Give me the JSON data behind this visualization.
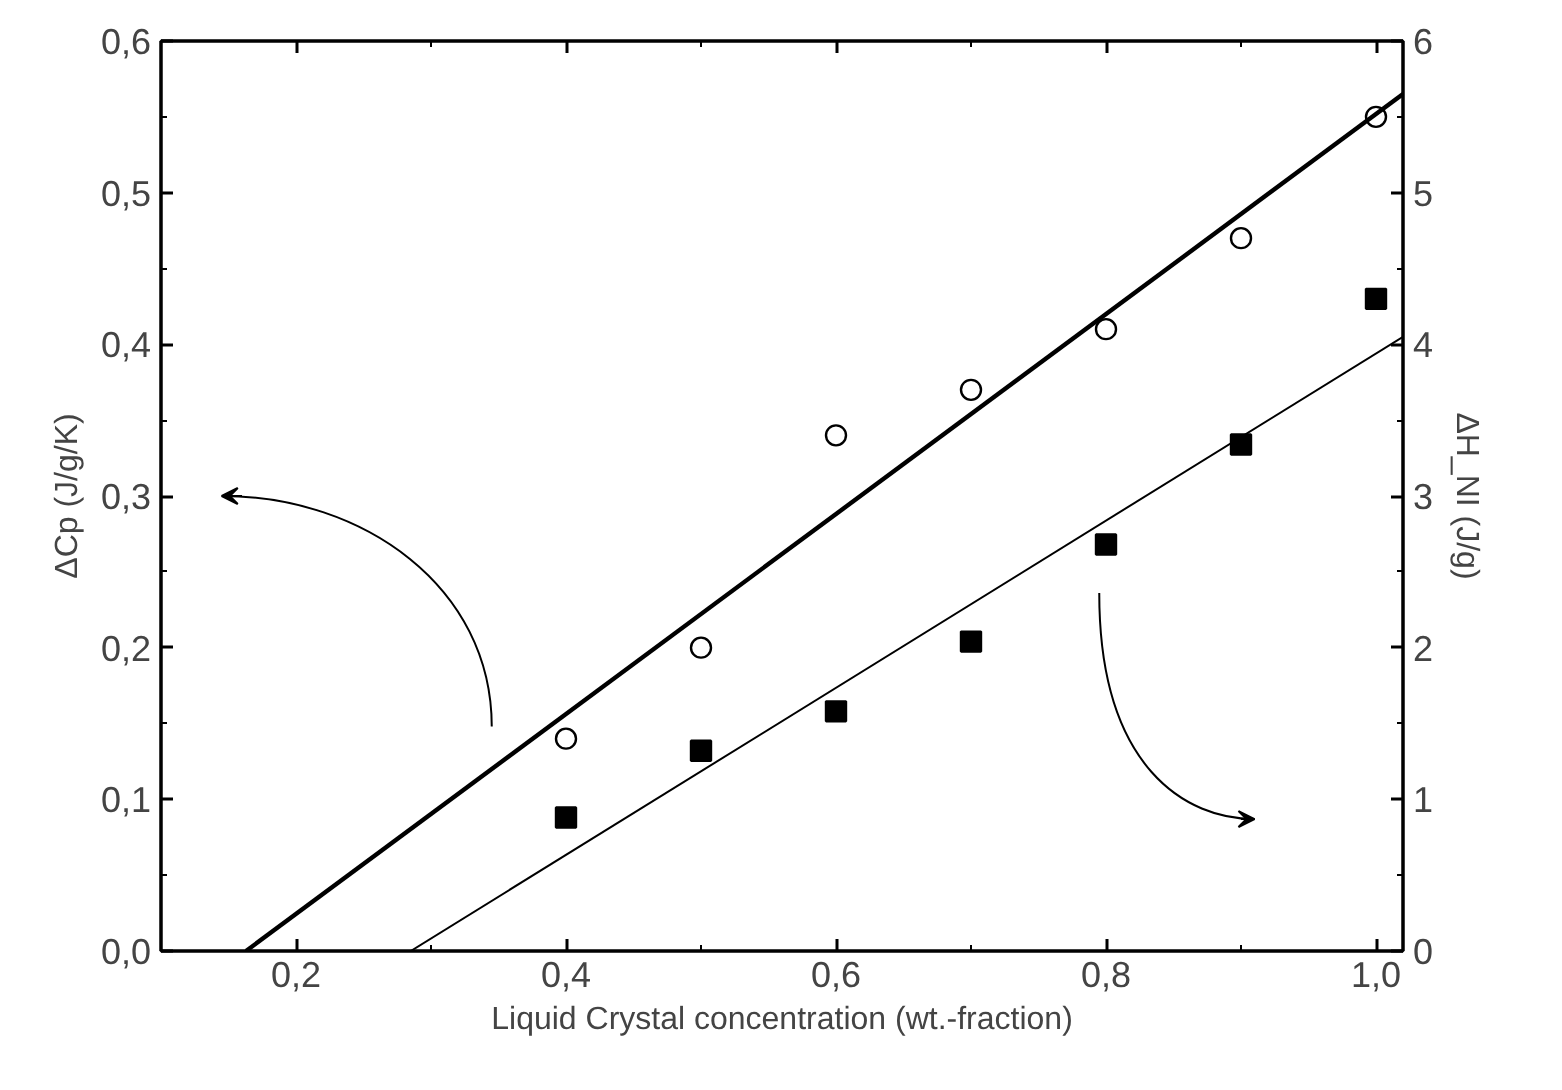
{
  "chart_data": {
    "type": "scatter",
    "xlabel": "Liquid Crystal concentration (wt.-fraction)",
    "ylabel": "ΔCp (J/g/K)",
    "y2label": "ΔH_NI (J/g)",
    "x": [
      0.4,
      0.5,
      0.6,
      0.7,
      0.8,
      0.9,
      1.0
    ],
    "series": [
      {
        "marker": "circle",
        "color": "#000000",
        "values": [
          0.14,
          0.2,
          0.34,
          0.37,
          0.41,
          0.47,
          0.55
        ]
      },
      {
        "marker": "square",
        "color": "#000000",
        "axis": "y2",
        "values": [
          0.88,
          1.32,
          1.58,
          2.04,
          2.68,
          3.34,
          4.3
        ]
      },
      {
        "type": "line",
        "color": "#000000",
        "x": [
          0.163,
          1.02
        ],
        "values": [
          0,
          0.565
        ]
      },
      {
        "type": "line",
        "color": "#000000",
        "axis": "y2",
        "x": [
          0.285,
          1.02
        ],
        "values": [
          0,
          4.05
        ]
      }
    ],
    "xlim": [
      0.1,
      1.02
    ],
    "xticks": [
      {
        "value": 0.2,
        "label": "0,2"
      },
      {
        "value": 0.4,
        "label": "0,4"
      },
      {
        "value": 0.6,
        "label": "0,6"
      },
      {
        "value": 0.8,
        "label": "0,8"
      },
      {
        "value": 1.0,
        "label": "1,0"
      }
    ],
    "ylim": [
      0,
      0.6
    ],
    "yticks": [
      {
        "value": 0,
        "label": "0,0"
      },
      {
        "value": 0.1,
        "label": "0,1"
      },
      {
        "value": 0.2,
        "label": "0,2"
      },
      {
        "value": 0.3,
        "label": "0,3"
      },
      {
        "value": 0.4,
        "label": "0,4"
      },
      {
        "value": 0.5,
        "label": "0,5"
      },
      {
        "value": 0.6,
        "label": "0,6"
      }
    ],
    "y2lim": [
      0,
      6
    ],
    "y2ticks": [
      0,
      1,
      2,
      3,
      4,
      5,
      6
    ],
    "grid": false
  }
}
